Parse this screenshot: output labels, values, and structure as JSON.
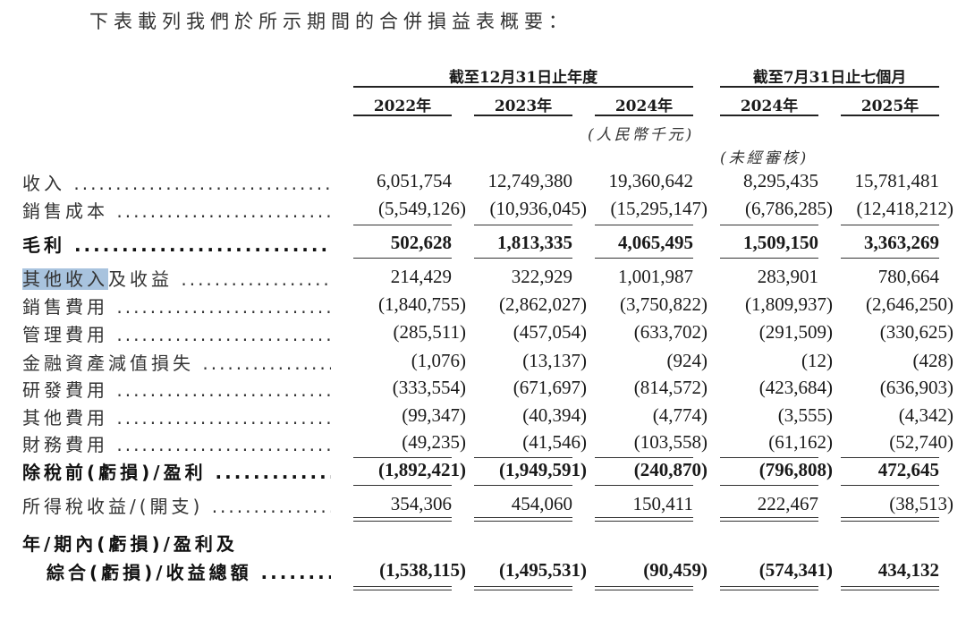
{
  "intro": "下表載列我們於所示期間的合併損益表概要：",
  "header": {
    "group_annual": "截至12月31日止年度",
    "group_seven_months": "截至7月31日止七個月",
    "years": [
      "2022年",
      "2023年",
      "2024年",
      "2024年",
      "2025年"
    ],
    "unit": "(人民幣千元)",
    "unaudited": "(未經審核)"
  },
  "highlight_text": "其他收入",
  "rows": [
    {
      "label": "收入",
      "bold": false,
      "values": [
        "6,051,754",
        "12,749,380",
        "19,360,642",
        "8,295,435",
        "15,781,481"
      ]
    },
    {
      "label": "銷售成本",
      "bold": false,
      "values": [
        "(5,549,126)",
        "(10,936,045)",
        "(15,295,147)",
        "(6,786,285)",
        "(12,418,212)"
      ]
    },
    {
      "label": "毛利",
      "bold": true,
      "values": [
        "502,628",
        "1,813,335",
        "4,065,495",
        "1,509,150",
        "3,363,269"
      ]
    },
    {
      "label": "其他收入及收益",
      "bold": false,
      "values": [
        "214,429",
        "322,929",
        "1,001,987",
        "283,901",
        "780,664"
      ]
    },
    {
      "label": "銷售費用",
      "bold": false,
      "values": [
        "(1,840,755)",
        "(2,862,027)",
        "(3,750,822)",
        "(1,809,937)",
        "(2,646,250)"
      ]
    },
    {
      "label": "管理費用",
      "bold": false,
      "values": [
        "(285,511)",
        "(457,054)",
        "(633,702)",
        "(291,509)",
        "(330,625)"
      ]
    },
    {
      "label": "金融資產減值損失",
      "bold": false,
      "values": [
        "(1,076)",
        "(13,137)",
        "(924)",
        "(12)",
        "(428)"
      ]
    },
    {
      "label": "研發費用",
      "bold": false,
      "values": [
        "(333,554)",
        "(671,697)",
        "(814,572)",
        "(423,684)",
        "(636,903)"
      ]
    },
    {
      "label": "其他費用",
      "bold": false,
      "values": [
        "(99,347)",
        "(40,394)",
        "(4,774)",
        "(3,555)",
        "(4,342)"
      ]
    },
    {
      "label": "財務費用",
      "bold": false,
      "values": [
        "(49,235)",
        "(41,546)",
        "(103,558)",
        "(61,162)",
        "(52,740)"
      ]
    },
    {
      "label": "除稅前(虧損)/盈利",
      "bold": true,
      "values": [
        "(1,892,421)",
        "(1,949,591)",
        "(240,870)",
        "(796,808)",
        "472,645"
      ]
    },
    {
      "label": "所得稅收益/(開支)",
      "bold": false,
      "values": [
        "354,306",
        "454,060",
        "150,411",
        "222,467",
        "(38,513)"
      ]
    },
    {
      "label": "綜合(虧損)/收益總額",
      "label_line1": "年/期內(虧損)/盈利及",
      "bold": true,
      "values": [
        "(1,538,115)",
        "(1,495,531)",
        "(90,459)",
        "(574,341)",
        "434,132"
      ]
    }
  ]
}
